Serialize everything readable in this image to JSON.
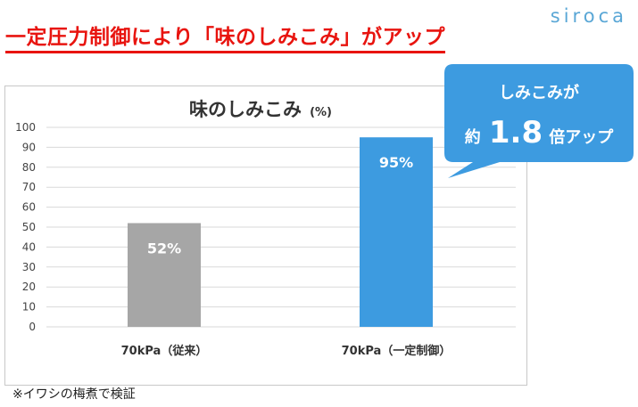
{
  "headline": "一定圧力制御により「味のしみこみ」がアップ",
  "brand": "siroca",
  "colors": {
    "headline": "#e8140f",
    "bar_conventional": "#a6a6a6",
    "bar_constant": "#3d9be0",
    "callout": "#3d9be0",
    "logo": "#5aa7d6"
  },
  "callout": {
    "line1": "しみこみが",
    "prefix": "約",
    "value": "1.8",
    "suffix": "倍アップ"
  },
  "footnote": "※イワシの梅煮で検証",
  "chart_data": {
    "type": "bar",
    "title": "味のしみこみ",
    "title_unit": "(%)",
    "categories": [
      "70kPa（従来）",
      "70kPa（一定制御）"
    ],
    "values": [
      52,
      95
    ],
    "data_labels": [
      "52%",
      "95%"
    ],
    "bar_colors": [
      "#a6a6a6",
      "#3d9be0"
    ],
    "ylim": [
      0,
      100
    ],
    "yticks": [
      0,
      10,
      20,
      30,
      40,
      50,
      60,
      70,
      80,
      90,
      100
    ],
    "grid": true,
    "xlabel": "",
    "ylabel": ""
  }
}
